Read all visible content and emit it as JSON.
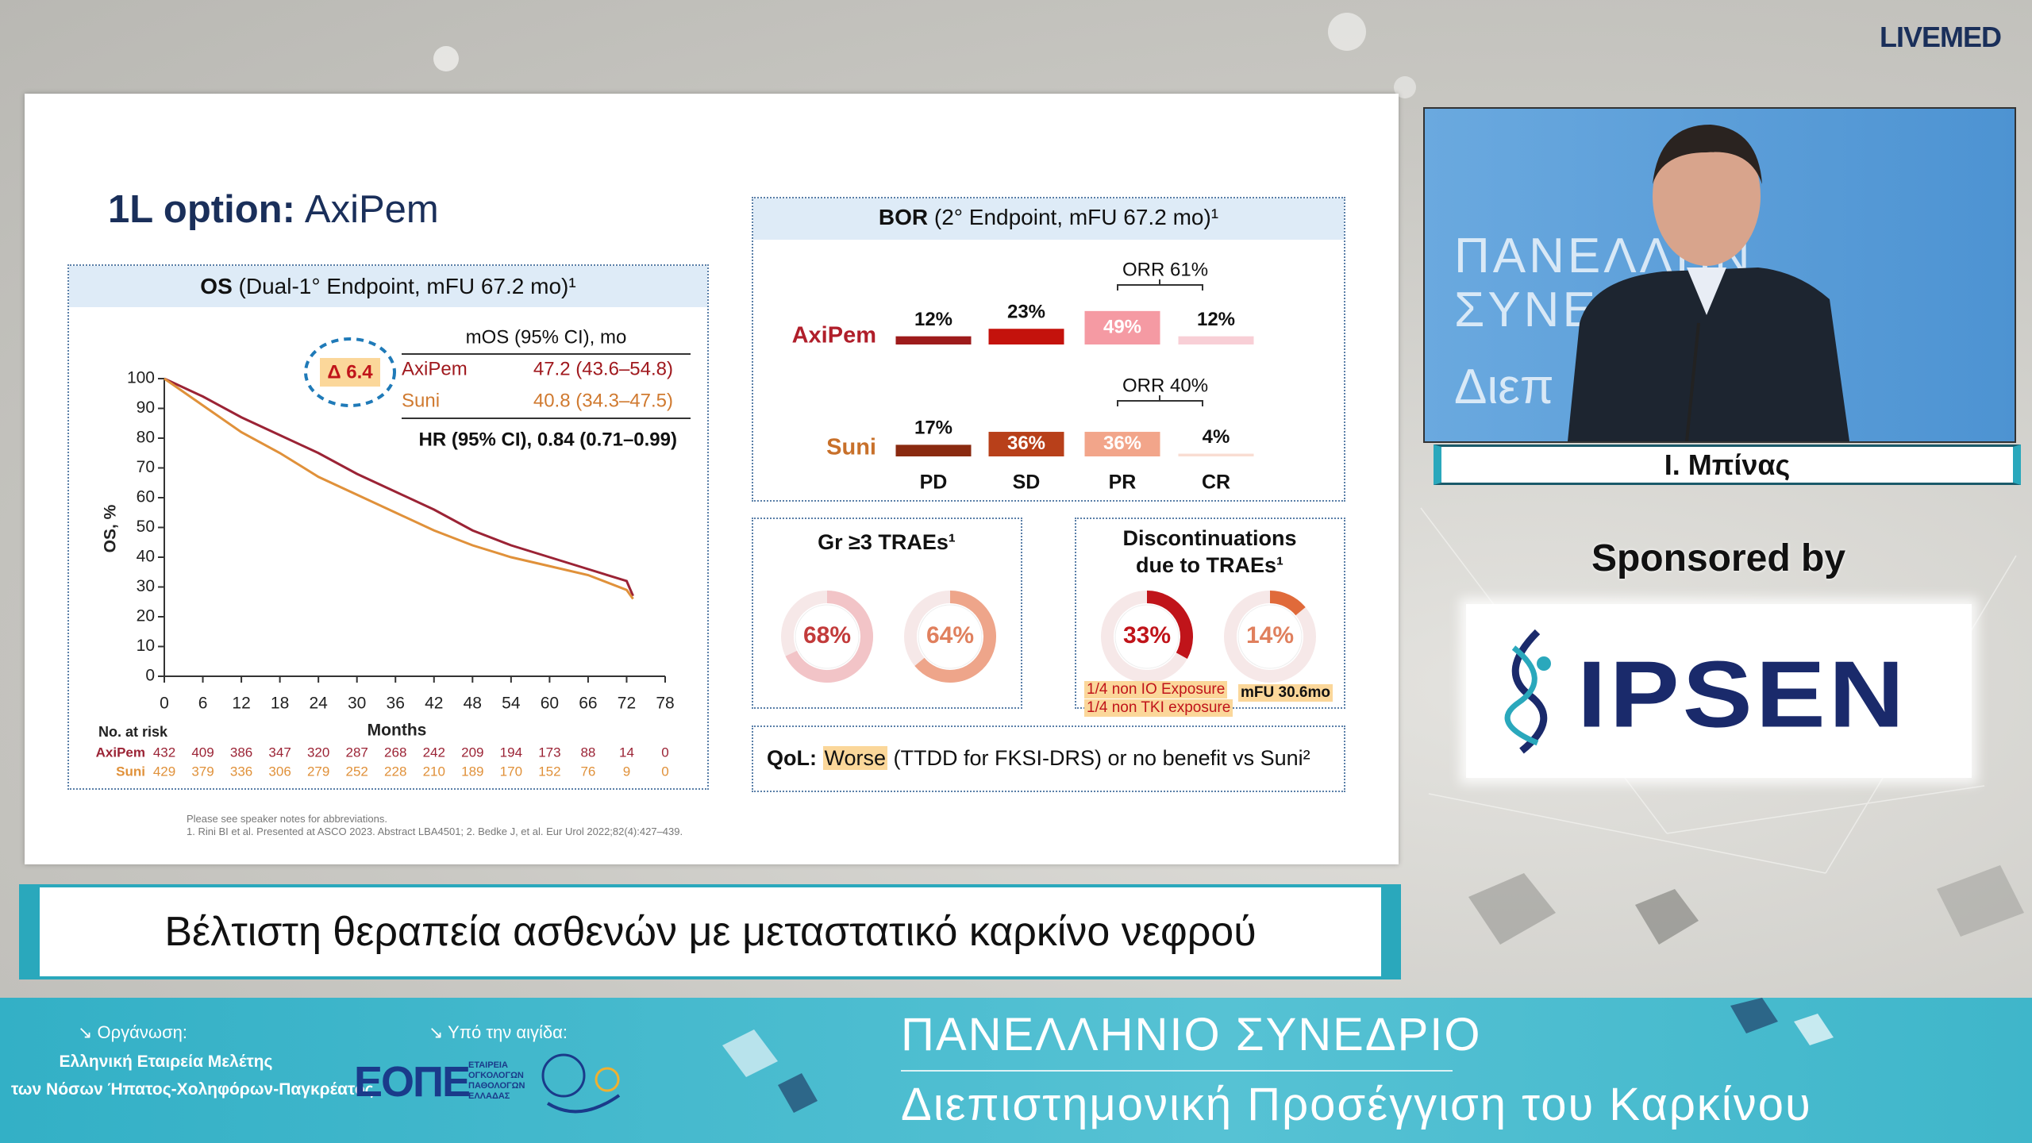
{
  "header": {
    "logo": "LIVEMED"
  },
  "slide": {
    "title_bold": "1L option:",
    "title_rest": "AxiPem",
    "os_panel": {
      "title_bold": "OS",
      "title_rest": "(Dual-1° Endpoint, mFU 67.2 mo)¹",
      "chart": {
        "type": "line",
        "ylabel": "OS, %",
        "xlabel": "Months",
        "x": [
          0,
          6,
          12,
          18,
          24,
          30,
          36,
          42,
          48,
          54,
          60,
          66,
          72,
          73
        ],
        "series": [
          {
            "name": "AxiPem",
            "color": "#9b2335",
            "values": [
              100,
              94,
              87,
              81,
              75,
              68,
              62,
              56,
              49,
              44,
              40,
              36,
              32,
              27
            ]
          },
          {
            "name": "Suni",
            "color": "#e0913a",
            "values": [
              100,
              91,
              82,
              75,
              67,
              61,
              55,
              49,
              44,
              40,
              37,
              34,
              29,
              26
            ]
          }
        ],
        "xlim": [
          0,
          78
        ],
        "ylim": [
          0,
          100
        ],
        "xticks": [
          0,
          6,
          12,
          18,
          24,
          30,
          36,
          42,
          48,
          54,
          60,
          66,
          72,
          78
        ],
        "yticks": [
          0,
          10,
          20,
          30,
          40,
          50,
          60,
          70,
          80,
          90,
          100
        ]
      },
      "legend": {
        "header": "mOS (95% CI), mo",
        "delta": "Δ 6.4",
        "rows": [
          [
            "AxiPem",
            "47.2 (43.6–54.8)"
          ],
          [
            "Suni",
            "40.8 (34.3–47.5)"
          ]
        ],
        "hr": "HR (95% CI), 0.84 (0.71–0.99)"
      },
      "risk": {
        "title": "No. at risk",
        "rows": [
          {
            "name": "AxiPem",
            "values": [
              432,
              409,
              386,
              347,
              320,
              287,
              268,
              242,
              209,
              194,
              173,
              88,
              14,
              0
            ]
          },
          {
            "name": "Suni",
            "values": [
              429,
              379,
              336,
              306,
              279,
              252,
              228,
              210,
              189,
              170,
              152,
              76,
              9,
              0
            ]
          }
        ]
      }
    },
    "bor_panel": {
      "title_bold": "BOR",
      "title_rest": "(2° Endpoint, mFU 67.2 mo)¹",
      "categories": [
        "PD",
        "SD",
        "PR",
        "CR"
      ],
      "series": [
        {
          "name": "AxiPem",
          "values": [
            12,
            23,
            49,
            12
          ],
          "value_labels": [
            "12%",
            "23%",
            "49%",
            "12%"
          ],
          "colors": [
            "#9e1b1b",
            "#c4120c",
            "#f59aa3",
            "#f8cfd6"
          ]
        },
        {
          "name": "Suni",
          "values": [
            17,
            36,
            36,
            4
          ],
          "value_labels": [
            "17%",
            "36%",
            "36%",
            "4%"
          ],
          "colors": [
            "#8a2a10",
            "#b8401a",
            "#f2a58a",
            "#f9ddd2"
          ]
        }
      ],
      "orr": [
        "ORR 61%",
        "ORR 40%"
      ]
    },
    "trae_panel": {
      "title": "Gr ≥3 TRAEs¹",
      "donuts": [
        {
          "value": 68,
          "label": "68%",
          "color": "#f2c4c7",
          "text_color": "#c23b3b"
        },
        {
          "value": 64,
          "label": "64%",
          "color": "#eea58a",
          "text_color": "#e0805e"
        }
      ]
    },
    "disc_panel": {
      "title_lines": [
        "Discontinuations",
        "due to TRAEs¹"
      ],
      "donuts": [
        {
          "value": 33,
          "label": "33%",
          "color": "#c0141a",
          "text_color": "#c0141a"
        },
        {
          "value": 14,
          "label": "14%",
          "color": "#e06a3a",
          "text_color": "#e0805e"
        }
      ],
      "notes": [
        "1/4 non IO Exposure",
        "1/4 non TKI exposure"
      ],
      "mfu": "mFU 30.6mo"
    },
    "qol": {
      "label": "QoL:",
      "highlight": "Worse",
      "rest": "(TTDD for FKSI-DRS) or no benefit vs Suni²"
    },
    "footnotes": [
      "Please see speaker notes for abbreviations.",
      "1. Rini BI et al. Presented at ASCO 2023. Abstract LBA4501; 2. Bedke J, et al. Eur Urol 2022;82(4):427–439."
    ]
  },
  "speaker": {
    "name": "Ι. Μπίνας",
    "backdrop": [
      "ΠΑΝΕΛΛΗΝ",
      "ΣΥΝΕ",
      "Διεπ"
    ]
  },
  "sponsor": {
    "label": "Sponsored by",
    "logo": "IPSEN"
  },
  "caption": "Βέλτιστη θεραπεία ασθενών με μεταστατικό καρκίνο νεφρού",
  "footer": {
    "organizer_label": "↘ Οργάνωση:",
    "organizer_lines": [
      "Ελληνική Εταιρεία Μελέτης",
      "των Νόσων Ήπατος-Χοληφόρων-Παγκρέατος"
    ],
    "auspices_label": "↘ Υπό την αιγίδα:",
    "eope_logo": "ΕΟΠΕ",
    "eope_lines": [
      "ΕΤΑΙΡΕΙΑ",
      "ΟΓΚΟΛΟΓΩΝ",
      "ΠΑΘΟΛΟΓΩΝ",
      "ΕΛΛΑΔΑΣ"
    ],
    "congress": "ΠΑΝΕΛΛΗΝΙΟ ΣΥΝΕΔΡΙΟ",
    "congress_sub": "Διεπιστημονική Προσέγγιση του Καρκίνου"
  }
}
